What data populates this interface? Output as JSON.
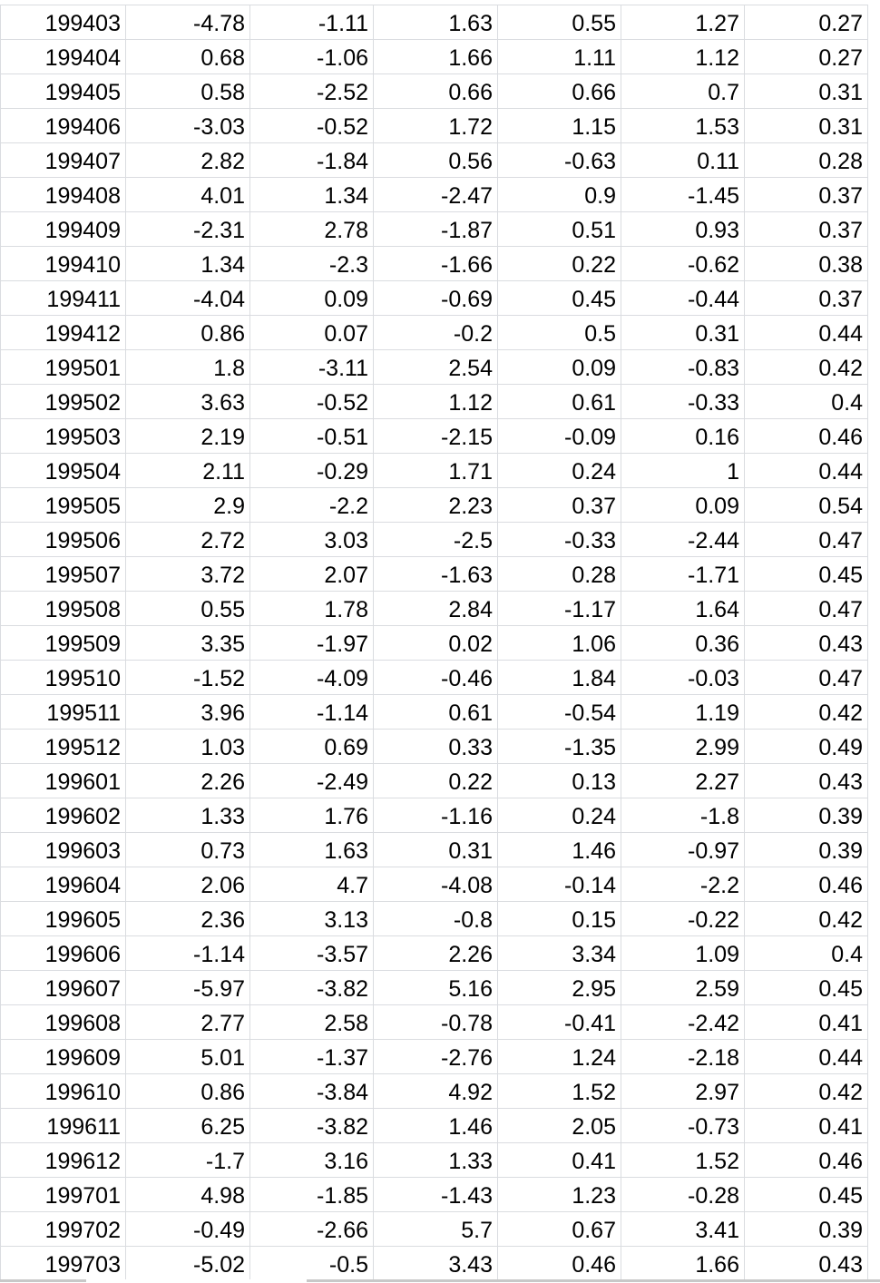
{
  "sheet": {
    "rows": [
      [
        "199403",
        "-4.78",
        "-1.11",
        "1.63",
        "0.55",
        "1.27",
        "0.27"
      ],
      [
        "199404",
        "0.68",
        "-1.06",
        "1.66",
        "1.11",
        "1.12",
        "0.27"
      ],
      [
        "199405",
        "0.58",
        "-2.52",
        "0.66",
        "0.66",
        "0.7",
        "0.31"
      ],
      [
        "199406",
        "-3.03",
        "-0.52",
        "1.72",
        "1.15",
        "1.53",
        "0.31"
      ],
      [
        "199407",
        "2.82",
        "-1.84",
        "0.56",
        "-0.63",
        "0.11",
        "0.28"
      ],
      [
        "199408",
        "4.01",
        "1.34",
        "-2.47",
        "0.9",
        "-1.45",
        "0.37"
      ],
      [
        "199409",
        "-2.31",
        "2.78",
        "-1.87",
        "0.51",
        "0.93",
        "0.37"
      ],
      [
        "199410",
        "1.34",
        "-2.3",
        "-1.66",
        "0.22",
        "-0.62",
        "0.38"
      ],
      [
        "199411",
        "-4.04",
        "0.09",
        "-0.69",
        "0.45",
        "-0.44",
        "0.37"
      ],
      [
        "199412",
        "0.86",
        "0.07",
        "-0.2",
        "0.5",
        "0.31",
        "0.44"
      ],
      [
        "199501",
        "1.8",
        "-3.11",
        "2.54",
        "0.09",
        "-0.83",
        "0.42"
      ],
      [
        "199502",
        "3.63",
        "-0.52",
        "1.12",
        "0.61",
        "-0.33",
        "0.4"
      ],
      [
        "199503",
        "2.19",
        "-0.51",
        "-2.15",
        "-0.09",
        "0.16",
        "0.46"
      ],
      [
        "199504",
        "2.11",
        "-0.29",
        "1.71",
        "0.24",
        "1",
        "0.44"
      ],
      [
        "199505",
        "2.9",
        "-2.2",
        "2.23",
        "0.37",
        "0.09",
        "0.54"
      ],
      [
        "199506",
        "2.72",
        "3.03",
        "-2.5",
        "-0.33",
        "-2.44",
        "0.47"
      ],
      [
        "199507",
        "3.72",
        "2.07",
        "-1.63",
        "0.28",
        "-1.71",
        "0.45"
      ],
      [
        "199508",
        "0.55",
        "1.78",
        "2.84",
        "-1.17",
        "1.64",
        "0.47"
      ],
      [
        "199509",
        "3.35",
        "-1.97",
        "0.02",
        "1.06",
        "0.36",
        "0.43"
      ],
      [
        "199510",
        "-1.52",
        "-4.09",
        "-0.46",
        "1.84",
        "-0.03",
        "0.47"
      ],
      [
        "199511",
        "3.96",
        "-1.14",
        "0.61",
        "-0.54",
        "1.19",
        "0.42"
      ],
      [
        "199512",
        "1.03",
        "0.69",
        "0.33",
        "-1.35",
        "2.99",
        "0.49"
      ],
      [
        "199601",
        "2.26",
        "-2.49",
        "0.22",
        "0.13",
        "2.27",
        "0.43"
      ],
      [
        "199602",
        "1.33",
        "1.76",
        "-1.16",
        "0.24",
        "-1.8",
        "0.39"
      ],
      [
        "199603",
        "0.73",
        "1.63",
        "0.31",
        "1.46",
        "-0.97",
        "0.39"
      ],
      [
        "199604",
        "2.06",
        "4.7",
        "-4.08",
        "-0.14",
        "-2.2",
        "0.46"
      ],
      [
        "199605",
        "2.36",
        "3.13",
        "-0.8",
        "0.15",
        "-0.22",
        "0.42"
      ],
      [
        "199606",
        "-1.14",
        "-3.57",
        "2.26",
        "3.34",
        "1.09",
        "0.4"
      ],
      [
        "199607",
        "-5.97",
        "-3.82",
        "5.16",
        "2.95",
        "2.59",
        "0.45"
      ],
      [
        "199608",
        "2.77",
        "2.58",
        "-0.78",
        "-0.41",
        "-2.42",
        "0.41"
      ],
      [
        "199609",
        "5.01",
        "-1.37",
        "-2.76",
        "1.24",
        "-2.18",
        "0.44"
      ],
      [
        "199610",
        "0.86",
        "-3.84",
        "4.92",
        "1.52",
        "2.97",
        "0.42"
      ],
      [
        "199611",
        "6.25",
        "-3.82",
        "1.46",
        "2.05",
        "-0.73",
        "0.41"
      ],
      [
        "199612",
        "-1.7",
        "3.16",
        "1.33",
        "0.41",
        "1.52",
        "0.46"
      ],
      [
        "199701",
        "4.98",
        "-1.85",
        "-1.43",
        "1.23",
        "-0.28",
        "0.45"
      ],
      [
        "199702",
        "-0.49",
        "-2.66",
        "5.7",
        "0.67",
        "3.41",
        "0.39"
      ],
      [
        "199703",
        "-5.02",
        "-0.5",
        "3.43",
        "0.46",
        "1.66",
        "0.43"
      ]
    ]
  }
}
